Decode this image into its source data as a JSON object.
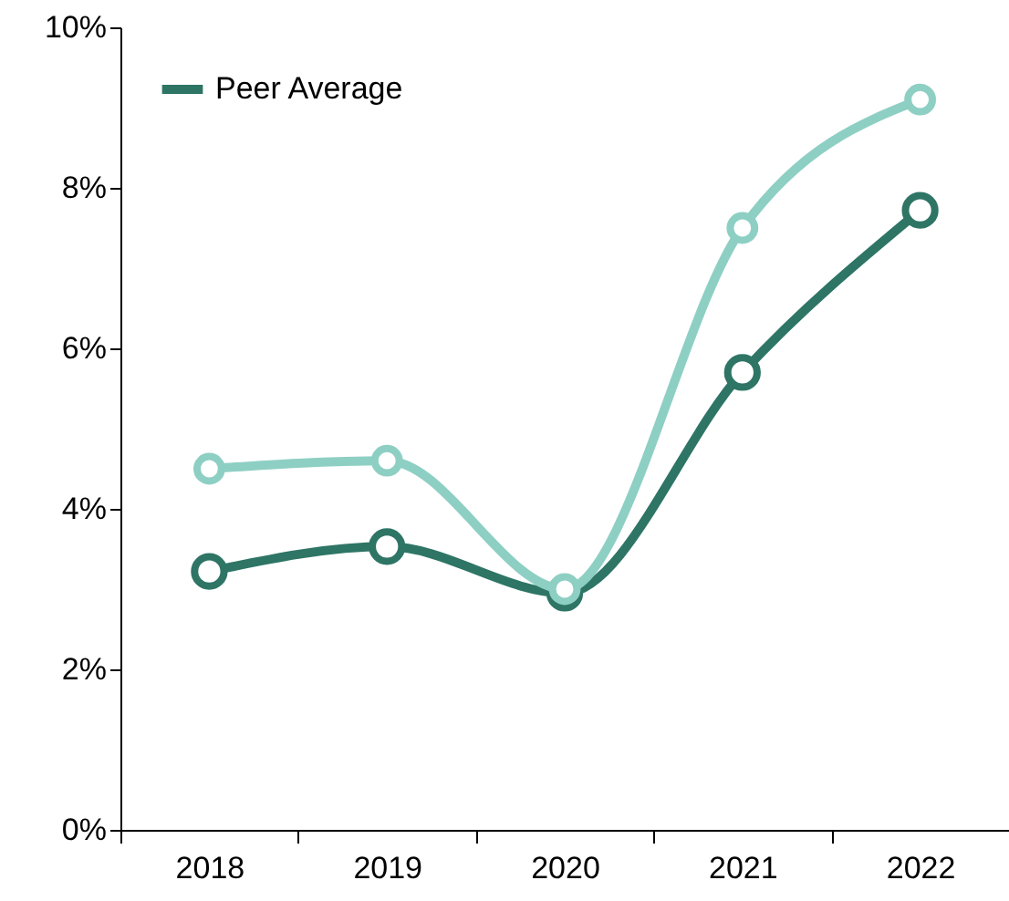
{
  "chart_data": {
    "type": "line",
    "categories": [
      "2018",
      "2019",
      "2020",
      "2021",
      "2022"
    ],
    "series": [
      {
        "name": "Peer Average",
        "color": "#2e7566",
        "values": [
          3.22,
          3.53,
          2.95,
          5.7,
          7.72
        ]
      },
      {
        "color": "#8ecfc4",
        "values": [
          4.5,
          4.6,
          3.0,
          7.5,
          9.1
        ]
      }
    ],
    "ylim": [
      0,
      10
    ],
    "yticks": [
      {
        "value": 0,
        "label": "0%"
      },
      {
        "value": 2,
        "label": "2%"
      },
      {
        "value": 4,
        "label": "4%"
      },
      {
        "value": 6,
        "label": "6%"
      },
      {
        "value": 8,
        "label": "8%"
      },
      {
        "value": 10,
        "label": "10%"
      }
    ],
    "grid": false,
    "legend": "top left",
    "marker": "circle",
    "line_style": "solid"
  }
}
